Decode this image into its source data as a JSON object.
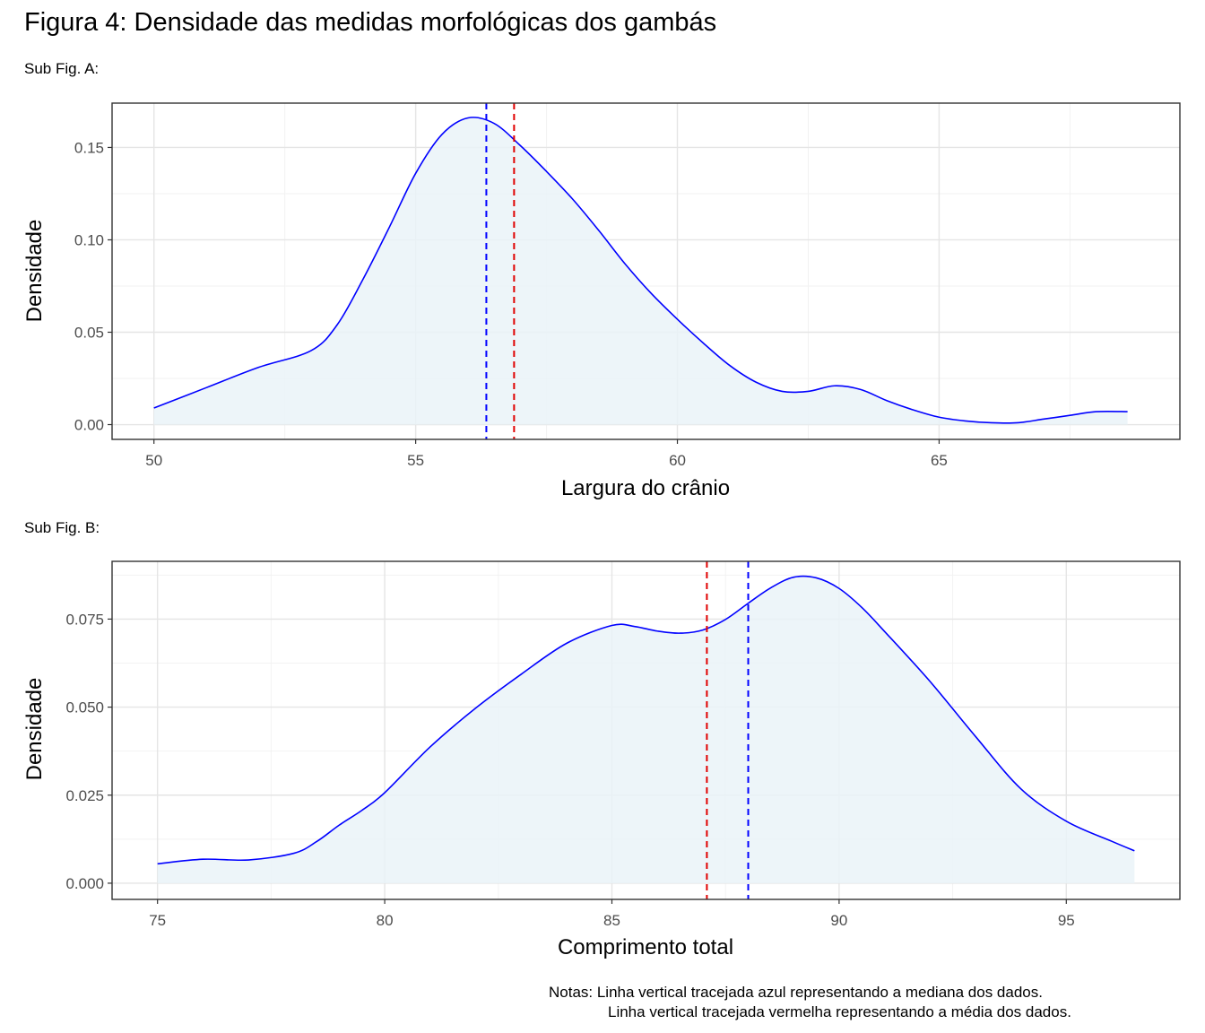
{
  "title": "Figura 4: Densidade das medidas morfológicas dos gambás",
  "subfig_a_label": "Sub Fig. A:",
  "subfig_b_label": "Sub Fig. B:",
  "notes": {
    "line1": "Notas: Linha vertical tracejada azul representando a mediana dos dados.",
    "line2": "Linha vertical tracejada vermelha representando a média dos dados."
  },
  "colors": {
    "density_line": "#0000ff",
    "density_fill": "#eaf3f8",
    "median_line": "#0000ff",
    "mean_line": "#e00000",
    "grid_major": "#e5e5e5",
    "grid_minor": "#f2f2f2",
    "panel_border": "#333333"
  },
  "chart_data": [
    {
      "type": "area",
      "xlabel": "Largura do crânio",
      "ylabel": "Densidade",
      "xlim": [
        49.2,
        69.6
      ],
      "ylim": [
        -0.008,
        0.174
      ],
      "xticks": [
        50,
        55,
        60,
        65
      ],
      "xtick_labels": [
        "50",
        "55",
        "60",
        "65"
      ],
      "yticks": [
        0,
        0.05,
        0.1,
        0.15
      ],
      "ytick_labels": [
        "0.00",
        "0.05",
        "0.10",
        "0.15"
      ],
      "grid": true,
      "median": 56.35,
      "mean": 56.88,
      "x": [
        50,
        51,
        52,
        53,
        53.5,
        54,
        54.5,
        55,
        55.5,
        56,
        56.5,
        57,
        57.5,
        58,
        58.5,
        59,
        59.5,
        60,
        60.5,
        61,
        61.5,
        62,
        62.5,
        63,
        63.5,
        64,
        64.5,
        65,
        65.5,
        66,
        66.5,
        67,
        67.5,
        68,
        68.6
      ],
      "y": [
        0.009,
        0.02,
        0.031,
        0.04,
        0.054,
        0.079,
        0.107,
        0.136,
        0.157,
        0.166,
        0.163,
        0.151,
        0.137,
        0.122,
        0.105,
        0.087,
        0.071,
        0.057,
        0.044,
        0.032,
        0.023,
        0.018,
        0.018,
        0.021,
        0.019,
        0.013,
        0.008,
        0.004,
        0.002,
        0.001,
        0.001,
        0.003,
        0.005,
        0.007,
        0.007
      ]
    },
    {
      "type": "area",
      "xlabel": "Comprimento total",
      "ylabel": "Densidade",
      "xlim": [
        74.0,
        97.5
      ],
      "ylim": [
        -0.0046,
        0.0914
      ],
      "xticks": [
        75,
        80,
        85,
        90,
        95
      ],
      "xtick_labels": [
        "75",
        "80",
        "85",
        "90",
        "95"
      ],
      "yticks": [
        0,
        0.025,
        0.05,
        0.075
      ],
      "ytick_labels": [
        "0.000",
        "0.025",
        "0.050",
        "0.075"
      ],
      "grid": true,
      "median": 88.0,
      "mean": 87.09,
      "x": [
        75,
        76,
        77,
        78,
        78.5,
        79,
        79.5,
        80,
        81,
        82,
        83,
        84,
        85,
        85.5,
        86,
        86.5,
        87,
        87.5,
        88,
        88.5,
        89,
        89.5,
        90,
        90.5,
        91,
        92,
        93,
        94,
        95,
        96,
        96.5
      ],
      "y": [
        0.0055,
        0.0068,
        0.0066,
        0.0085,
        0.0118,
        0.0165,
        0.0207,
        0.0257,
        0.0387,
        0.0497,
        0.0593,
        0.0681,
        0.0732,
        0.0729,
        0.0716,
        0.071,
        0.0719,
        0.0749,
        0.0795,
        0.0839,
        0.0869,
        0.0867,
        0.0837,
        0.0783,
        0.0715,
        0.0573,
        0.0417,
        0.0268,
        0.0176,
        0.0119,
        0.0092
      ]
    }
  ]
}
